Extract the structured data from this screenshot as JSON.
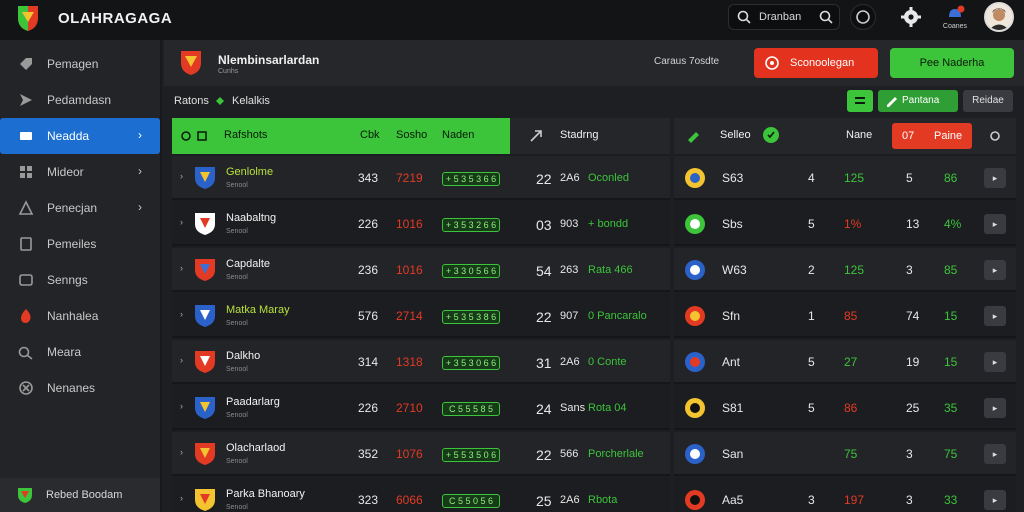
{
  "app": {
    "title": "OLAHRAGAGA"
  },
  "search": {
    "value": "Dranban"
  },
  "notif": {
    "label": "Coanes"
  },
  "sidebar": {
    "items": [
      {
        "label": "Pemagen",
        "icon": "tag-icon"
      },
      {
        "label": "Pedamdasn",
        "icon": "share-icon"
      },
      {
        "label": "Neadda",
        "icon": "ticket-icon",
        "active": true,
        "chevron": "›"
      },
      {
        "label": "Mideor",
        "icon": "grid-icon",
        "chevron": "›"
      },
      {
        "label": "Penecjan",
        "icon": "triangle-icon",
        "chevron": "›"
      },
      {
        "label": "Pemeiles",
        "icon": "bookmark-icon"
      },
      {
        "label": "Senngs",
        "icon": "box-icon"
      },
      {
        "label": "Nanhalea",
        "icon": "flame-icon"
      },
      {
        "label": "Meara",
        "icon": "pen-icon"
      },
      {
        "label": "Nenanes",
        "icon": "x-circle-icon"
      }
    ],
    "footer": "Rebed Boodam"
  },
  "header": {
    "team_name": "Nlembinsarlardan",
    "team_sub": "Cunhs",
    "status_note": "Caraus 7osdte",
    "red_button": "Sconoolegan",
    "green_button": "Pee Naderha"
  },
  "filters": {
    "left_label": "Ratons",
    "right_label": "Kelalkis",
    "tool_button": "Pantana",
    "gray_button": "Reidae"
  },
  "left_table": {
    "headers": {
      "team": "Rafshots",
      "c1": "Cbk",
      "c2": "Sosho",
      "c3": "Naden",
      "c4": "Stadrng"
    },
    "rows": [
      {
        "name": "Genlolme",
        "sub": "Senool",
        "a": "343",
        "b": "7219",
        "bar": "+ 5 3 5 3 6 6",
        "c": "22",
        "d": "2A6",
        "e": "Oconled",
        "name_green": true
      },
      {
        "name": "Naabaltng",
        "sub": "Senool",
        "a": "226",
        "b": "1016",
        "bar": "+ 3 5 3 2 6 6",
        "c": "03",
        "d": "903",
        "e": "+ bondd"
      },
      {
        "name": "Capdalte",
        "sub": "Senool",
        "a": "236",
        "b": "1016",
        "bar": "+ 3 3 0 5 6 6",
        "c": "54",
        "d": "263",
        "e": "Rata   466"
      },
      {
        "name": "Matka Maray",
        "sub": "Senool",
        "a": "576",
        "b": "2714",
        "bar": "+ 5 3 5 3 8 6",
        "c": "22",
        "d": "907",
        "e": "0  Pancaralo",
        "name_green": true
      },
      {
        "name": "Dalkho",
        "sub": "Senool",
        "a": "314",
        "b": "1318",
        "bar": "+ 3 5 3 0 6 6",
        "c": "31",
        "d": "2A6",
        "e": "0 Conte"
      },
      {
        "name": "Paadarlarg",
        "sub": "Senool",
        "a": "226",
        "b": "2710",
        "bar": "C 5 5 5 8   5",
        "c": "24",
        "d": "Sans",
        "e": "Rota     04"
      },
      {
        "name": "Olacharlaod",
        "sub": "Senool",
        "a": "352",
        "b": "1076",
        "bar": "+ 5 5 3 5 0 6",
        "c": "22",
        "d": "566",
        "e": "Porcherlale"
      },
      {
        "name": "Parka Bhanoary",
        "sub": "Senool",
        "a": "323",
        "b": "6066",
        "bar": "C 5 5 0 5 6",
        "c": "25",
        "d": "2A6",
        "e": "Rbota"
      }
    ]
  },
  "right_table": {
    "headers": {
      "name": "Selleo",
      "c1": "Nane",
      "pill_num": "07",
      "pill_label": "Paine"
    },
    "rows": [
      {
        "name": "S63",
        "a": "4",
        "b": "125",
        "c": "5",
        "d": "86"
      },
      {
        "name": "Sbs",
        "a": "5",
        "b": "1%",
        "c": "13",
        "d": "4%"
      },
      {
        "name": "W63",
        "a": "2",
        "b": "125",
        "c": "3",
        "d": "85"
      },
      {
        "name": "Sfn",
        "a": "1",
        "b": "85",
        "c": "74",
        "d": "15"
      },
      {
        "name": "Ant",
        "a": "5",
        "b": "27",
        "c": "19",
        "d": "15"
      },
      {
        "name": "S81",
        "a": "5",
        "b": "86",
        "c": "25",
        "d": "35"
      },
      {
        "name": "San",
        "a": "",
        "b": "75",
        "c": "3",
        "d": "75"
      },
      {
        "name": "Aa5",
        "a": "3",
        "b": "197",
        "c": "3",
        "d": "33"
      }
    ]
  },
  "colors": {
    "accent_green": "#3cc43a",
    "accent_red": "#e3321e",
    "accent_blue": "#1c6fd1"
  }
}
